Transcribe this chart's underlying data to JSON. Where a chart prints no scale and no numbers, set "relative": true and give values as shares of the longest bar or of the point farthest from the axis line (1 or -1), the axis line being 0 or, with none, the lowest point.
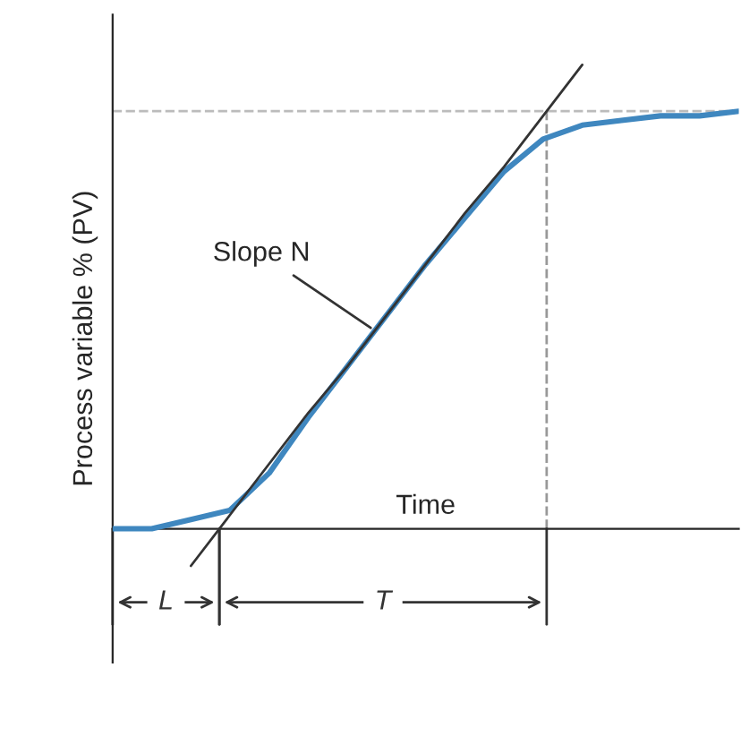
{
  "chart_data": {
    "type": "line",
    "relative": true,
    "xlabel": "Time",
    "ylabel": "Process variable % (PV)",
    "categories": [
      null,
      null,
      null,
      null,
      null,
      null,
      null,
      null,
      null,
      null,
      null,
      null,
      null,
      null,
      null,
      null,
      null
    ],
    "series": [
      {
        "color": "#3f87bf",
        "values": [
          0.0,
          0.0,
          0.02,
          0.04,
          0.12,
          0.24,
          0.35,
          0.46,
          0.57,
          0.67,
          0.77,
          0.84,
          0.87,
          0.88,
          0.89,
          0.89,
          0.9
        ]
      },
      {
        "color": "#333333",
        "values": [
          null,
          null,
          -0.08,
          0.03,
          0.14,
          0.25,
          0.35,
          0.46,
          0.57,
          0.68,
          0.78,
          0.89,
          1.0,
          null,
          null,
          null,
          null
        ]
      }
    ],
    "ref_lines": [
      {
        "axis": "y",
        "value": 0.9,
        "color": "#bbbbbb",
        "line_style": "dashed"
      }
    ],
    "annotations": [
      "Slope N",
      "L",
      "T"
    ],
    "tick_labels": false,
    "grid": false,
    "legend": false,
    "marker": "none",
    "line_style": "solid"
  }
}
